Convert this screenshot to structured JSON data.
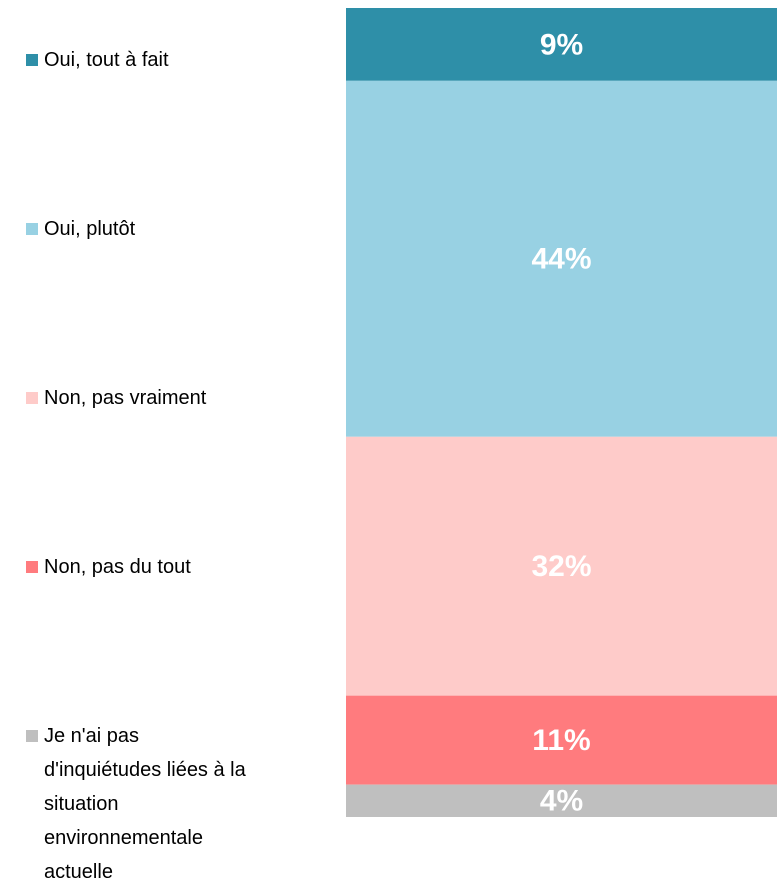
{
  "chart_data": {
    "type": "bar",
    "stacked": true,
    "categories": [
      null
    ],
    "series": [
      {
        "name": "Oui, tout à fait",
        "color": "#2e8fa8",
        "values": [
          9
        ],
        "value_labels": [
          "9%"
        ]
      },
      {
        "name": "Oui, plutôt",
        "color": "#98d1e3",
        "values": [
          44
        ],
        "value_labels": [
          "44%"
        ]
      },
      {
        "name": "Non, pas vraiment",
        "color": "#fecbc9",
        "values": [
          32
        ],
        "value_labels": [
          "32%"
        ]
      },
      {
        "name": "Non, pas du tout",
        "color": "#ff7b7e",
        "values": [
          11
        ],
        "value_labels": [
          "11%"
        ]
      },
      {
        "name": "Je n'ai pas d'inquiétudes liées à la situation environnementale actuelle",
        "color": "#bfbfbf",
        "values": [
          4
        ],
        "value_labels": [
          "4%"
        ]
      }
    ]
  }
}
